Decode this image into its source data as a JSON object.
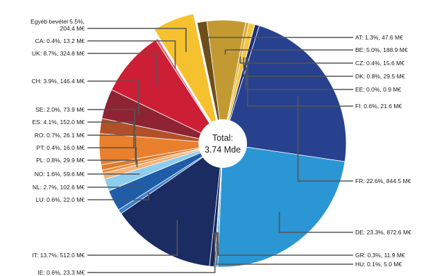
{
  "chart_data": {
    "type": "pie",
    "center_label": [
      "Total:",
      "3.74 Mde"
    ],
    "slices": [
      {
        "key": "AT",
        "label": "AT: 1.3%, 47.6 M€",
        "percent": 1.3,
        "value": 47.6,
        "color": "#6e4d18"
      },
      {
        "key": "BE",
        "label": "BE: 5.0%, 188.9 M€",
        "percent": 5.0,
        "value": 188.9,
        "color": "#c39a32"
      },
      {
        "key": "CZ",
        "label": "CZ: 0.4%, 15.6 M€",
        "percent": 0.4,
        "value": 15.6,
        "color": "#d8ad3a"
      },
      {
        "key": "DK",
        "label": "DK: 0.8%, 29.5 M€",
        "percent": 0.8,
        "value": 29.5,
        "color": "#f4c53f"
      },
      {
        "key": "EE",
        "label": "EE: 0.0%, 0.9 M€",
        "percent": 0.0,
        "value": 0.9,
        "color": "#3c2a10"
      },
      {
        "key": "FI",
        "label": "FI: 0.6%, 21.6 M€",
        "percent": 0.6,
        "value": 21.6,
        "color": "#1e2f78"
      },
      {
        "key": "FR",
        "label": "FR: 22.6%, 844.5 M€",
        "percent": 22.6,
        "value": 844.5,
        "color": "#27418f"
      },
      {
        "key": "DE",
        "label": "DE: 23.3%, 872.6 M€",
        "percent": 23.3,
        "value": 872.6,
        "color": "#2b96d4"
      },
      {
        "key": "GR",
        "label": "GR: 0.3%, 11.9 M€",
        "percent": 0.3,
        "value": 11.9,
        "color": "#5aaee2"
      },
      {
        "key": "HU",
        "label": "HU: 0.1%, 5.0 M€",
        "percent": 0.1,
        "value": 5.0,
        "color": "#1c3d78"
      },
      {
        "key": "IE",
        "label": "IE: 0.6%, 23.3 M€",
        "percent": 0.6,
        "value": 23.3,
        "color": "#15295f"
      },
      {
        "key": "IT",
        "label": "IT: 13.7%, 512.0 M€",
        "percent": 13.7,
        "value": 512.0,
        "color": "#1b2c63"
      },
      {
        "key": "LU",
        "label": "LU: 0.6%, 22.0 M€",
        "percent": 0.6,
        "value": 22.0,
        "color": "#3f80c6"
      },
      {
        "key": "NL",
        "label": "NL: 2.7%, 102.6 M€",
        "percent": 2.7,
        "value": 102.6,
        "color": "#1f5da8"
      },
      {
        "key": "NO",
        "label": "NO: 1.6%, 59.6 M€",
        "percent": 1.6,
        "value": 59.6,
        "color": "#8fcdee"
      },
      {
        "key": "PL",
        "label": "PL: 0.8%, 29.9 M€",
        "percent": 0.8,
        "value": 29.9,
        "color": "#f2b27a"
      },
      {
        "key": "PT",
        "label": "PT: 0.4%, 16.0 M€",
        "percent": 0.4,
        "value": 16.0,
        "color": "#e98c3b"
      },
      {
        "key": "RO",
        "label": "RO: 0.7%, 26.1 M€",
        "percent": 0.7,
        "value": 26.1,
        "color": "#de7b2c"
      },
      {
        "key": "ES",
        "label": "ES: 4.1%, 152.0 M€",
        "percent": 4.1,
        "value": 152.0,
        "color": "#e8802e"
      },
      {
        "key": "SE",
        "label": "SE: 2.0%, 73.9 M€",
        "percent": 2.0,
        "value": 73.9,
        "color": "#b2502a"
      },
      {
        "key": "CH",
        "label": "CH: 3.9%, 146.4 M€",
        "percent": 3.9,
        "value": 146.4,
        "color": "#8e2433"
      },
      {
        "key": "UK",
        "label": "UK: 8.7%, 324.8 M€",
        "percent": 8.7,
        "value": 324.8,
        "color": "#cc1f36"
      },
      {
        "key": "CA",
        "label": "CA: 0.4%, 13.2 M€",
        "percent": 0.4,
        "value": 13.2,
        "color": "#e36f80"
      },
      {
        "key": "OTHER",
        "label": "Egyéb bevétel 5.5%,\n204.4 M€",
        "percent": 5.5,
        "value": 204.4,
        "color": "#f6c12e",
        "exploded": true
      }
    ]
  }
}
